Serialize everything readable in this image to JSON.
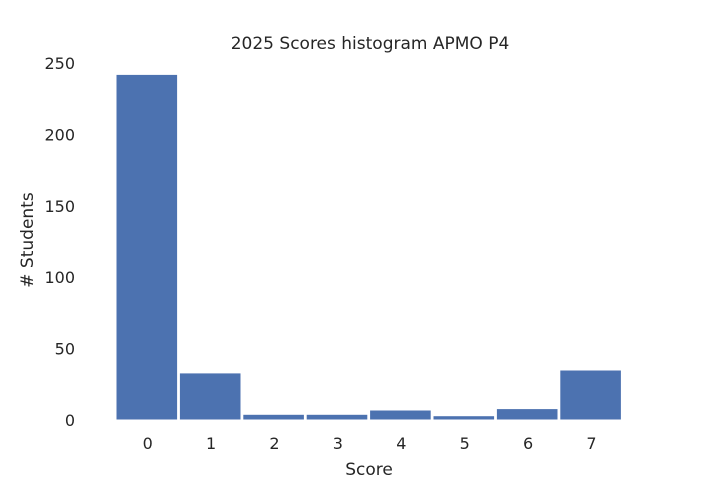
{
  "chart_data": {
    "type": "bar",
    "title": "2025 Scores histogram APMO P4",
    "xlabel": "Score",
    "ylabel": "# Students",
    "categories": [
      "0",
      "1",
      "2",
      "3",
      "4",
      "5",
      "6",
      "7"
    ],
    "values": [
      242,
      33,
      4,
      4,
      7,
      3,
      8,
      35
    ],
    "ylim": [
      0,
      250
    ],
    "yticks": [
      0,
      50,
      100,
      150,
      200,
      250
    ],
    "bar_color": "#4c72b0",
    "background_color": "#ffffff",
    "grid": false
  }
}
